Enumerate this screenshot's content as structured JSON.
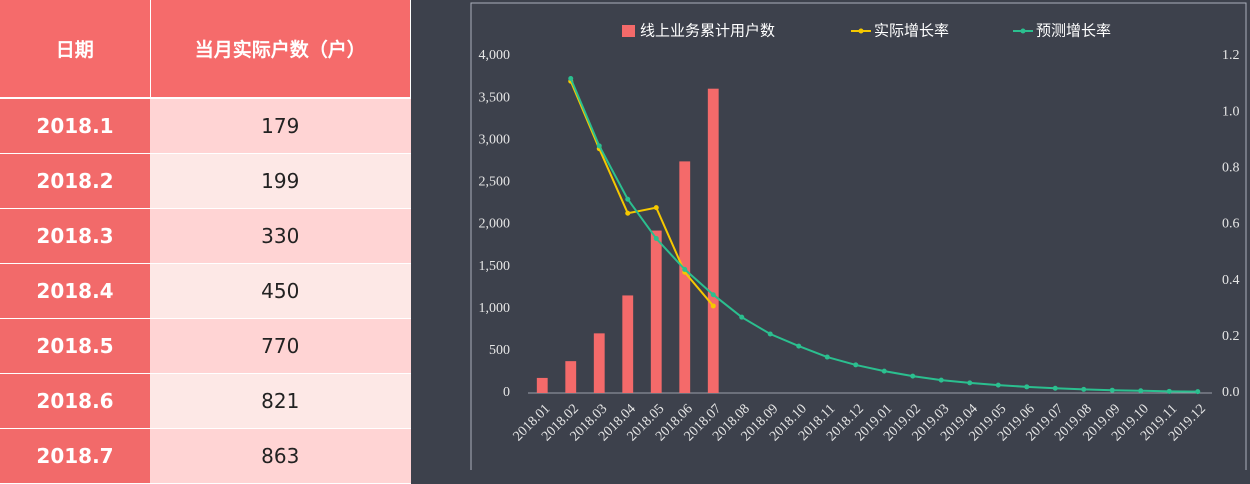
{
  "table": {
    "headers": [
      "日期",
      "当月实际户数（户）"
    ],
    "rows": [
      [
        "2018.1",
        179
      ],
      [
        "2018.2",
        199
      ],
      [
        "2018.3",
        330
      ],
      [
        "2018.4",
        450
      ],
      [
        "2018.5",
        770
      ],
      [
        "2018.6",
        821
      ],
      [
        "2018.7",
        863
      ]
    ]
  },
  "chart_data": {
    "type": "bar",
    "categories": [
      "2018.01",
      "2018.02",
      "2018.03",
      "2018.04",
      "2018.05",
      "2018.06",
      "2018.07",
      "2018.08",
      "2018.09",
      "2018.10",
      "2018.11",
      "2018.12",
      "2019.01",
      "2019.02",
      "2019.03",
      "2019.04",
      "2019.05",
      "2019.06",
      "2019.07",
      "2019.08",
      "2019.09",
      "2019.10",
      "2019.11",
      "2019.12"
    ],
    "series": [
      {
        "name": "线上业务累计用户数",
        "type": "bar",
        "color": "#f46a6a",
        "values": [
          179,
          378,
          708,
          1158,
          1928,
          2749,
          3612,
          null,
          null,
          null,
          null,
          null,
          null,
          null,
          null,
          null,
          null,
          null,
          null,
          null,
          null,
          null,
          null,
          null
        ]
      },
      {
        "name": "实际增长率",
        "type": "line",
        "axis": "y2",
        "color": "#f5c800",
        "values": [
          null,
          1.11,
          0.87,
          0.64,
          0.66,
          0.43,
          0.31,
          null,
          null,
          null,
          null,
          null,
          null,
          null,
          null,
          null,
          null,
          null,
          null,
          null,
          null,
          null,
          null,
          null
        ]
      },
      {
        "name": "预测增长率",
        "type": "line",
        "axis": "y2",
        "color": "#2bbf8f",
        "values": [
          null,
          1.12,
          0.88,
          0.69,
          0.55,
          0.44,
          0.35,
          0.27,
          0.21,
          0.167,
          0.128,
          0.1,
          0.078,
          0.06,
          0.046,
          0.036,
          0.028,
          0.022,
          0.017,
          0.013,
          0.01,
          0.008,
          0.006,
          0.005
        ]
      }
    ],
    "ylim": [
      0,
      4000
    ],
    "yticks": [
      0,
      {
        "value": 500,
        "label": "500"
      },
      {
        "value": 1000,
        "label": "1,000"
      },
      {
        "value": 1500,
        "label": "1,500"
      },
      {
        "value": 2000,
        "label": "2,000"
      },
      {
        "value": 2500,
        "label": "2,500"
      },
      {
        "value": 3000,
        "label": "3,000"
      },
      {
        "value": 3500,
        "label": "3,500"
      },
      {
        "value": 4000,
        "label": "4,000"
      }
    ],
    "y2lim": [
      0,
      1.2
    ],
    "y2ticks": [
      {
        "value": 0,
        "label": "0.0"
      },
      0.2,
      0.4,
      0.6,
      0.8,
      {
        "value": 1,
        "label": "1.0"
      },
      1.2
    ],
    "grid": false,
    "legend": "top"
  }
}
